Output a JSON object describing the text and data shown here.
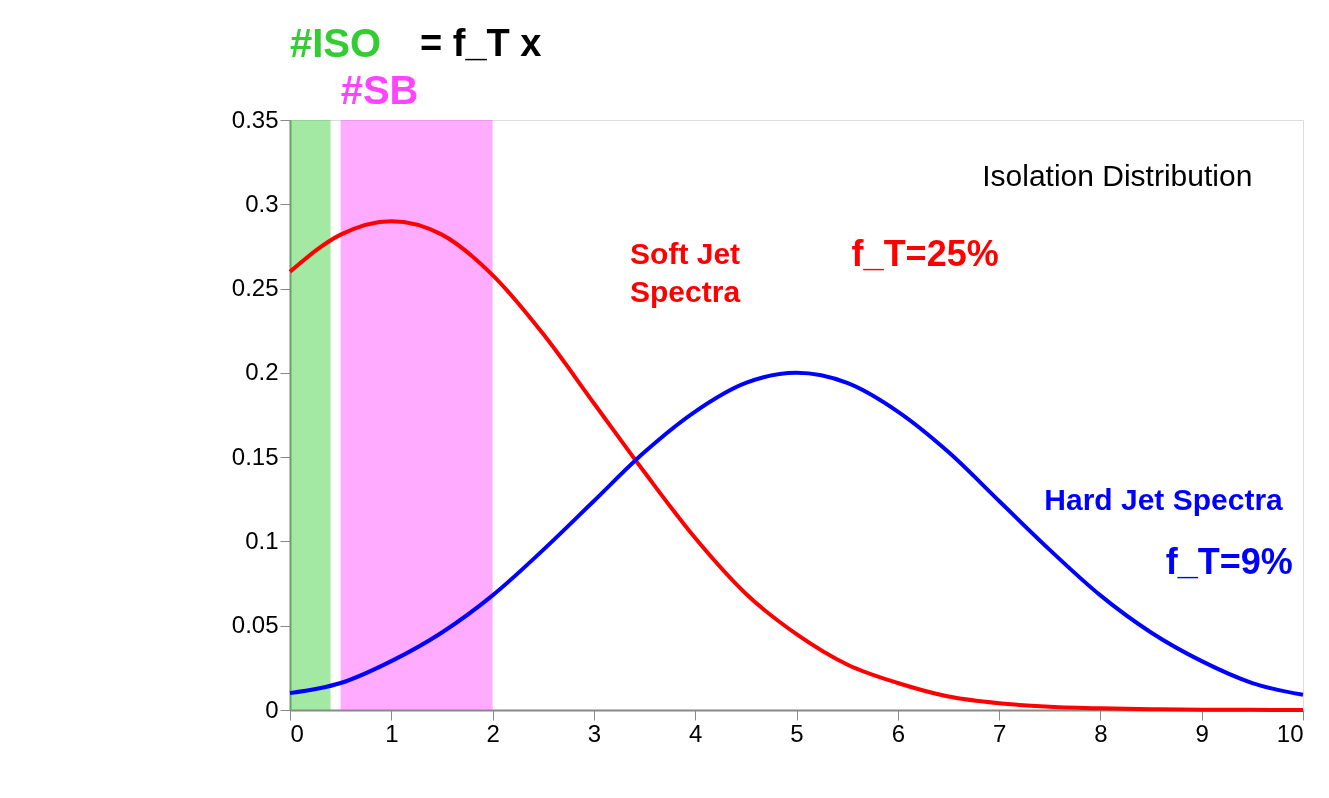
{
  "chart_data": {
    "type": "line",
    "x": [
      0,
      0.5,
      1,
      1.5,
      2,
      2.5,
      3,
      3.5,
      4,
      4.5,
      5,
      5.5,
      6,
      6.5,
      7,
      7.5,
      8,
      8.5,
      9,
      9.5,
      10
    ],
    "series": [
      {
        "name": "Soft Jet Spectra",
        "color": "#ff0000",
        "values": [
          0.26,
          0.282,
          0.29,
          0.282,
          0.258,
          0.223,
          0.182,
          0.141,
          0.102,
          0.069,
          0.045,
          0.027,
          0.016,
          0.008,
          0.004,
          0.002,
          0.001,
          0.0005,
          0.0002,
          0.0001,
          0
        ]
      },
      {
        "name": "Hard Jet Spectra",
        "color": "#0000ff",
        "values": [
          0.01,
          0.016,
          0.029,
          0.046,
          0.068,
          0.095,
          0.124,
          0.153,
          0.177,
          0.194,
          0.2,
          0.194,
          0.177,
          0.153,
          0.124,
          0.095,
          0.068,
          0.046,
          0.029,
          0.016,
          0.009
        ]
      }
    ],
    "xlim": [
      0,
      10
    ],
    "ylim": [
      0,
      0.35
    ],
    "xticks": [
      0,
      1,
      2,
      3,
      4,
      5,
      6,
      7,
      8,
      9,
      10
    ],
    "yticks": [
      0,
      0.05,
      0.1,
      0.15,
      0.2,
      0.25,
      0.3,
      0.35
    ],
    "bands": [
      {
        "axis": "x",
        "from": 0,
        "to": 0.4,
        "label": "#ISO",
        "color": "#33cc33"
      },
      {
        "axis": "x",
        "from": 0.5,
        "to": 2,
        "label": "#SB",
        "color": "#ff44ff"
      }
    ],
    "annotations": [
      "= f_T x",
      "Isolation Distribution",
      "f_T=25%",
      "f_T=9%"
    ],
    "legend": false,
    "grid": false,
    "marker": "none",
    "line_style": "solid"
  }
}
